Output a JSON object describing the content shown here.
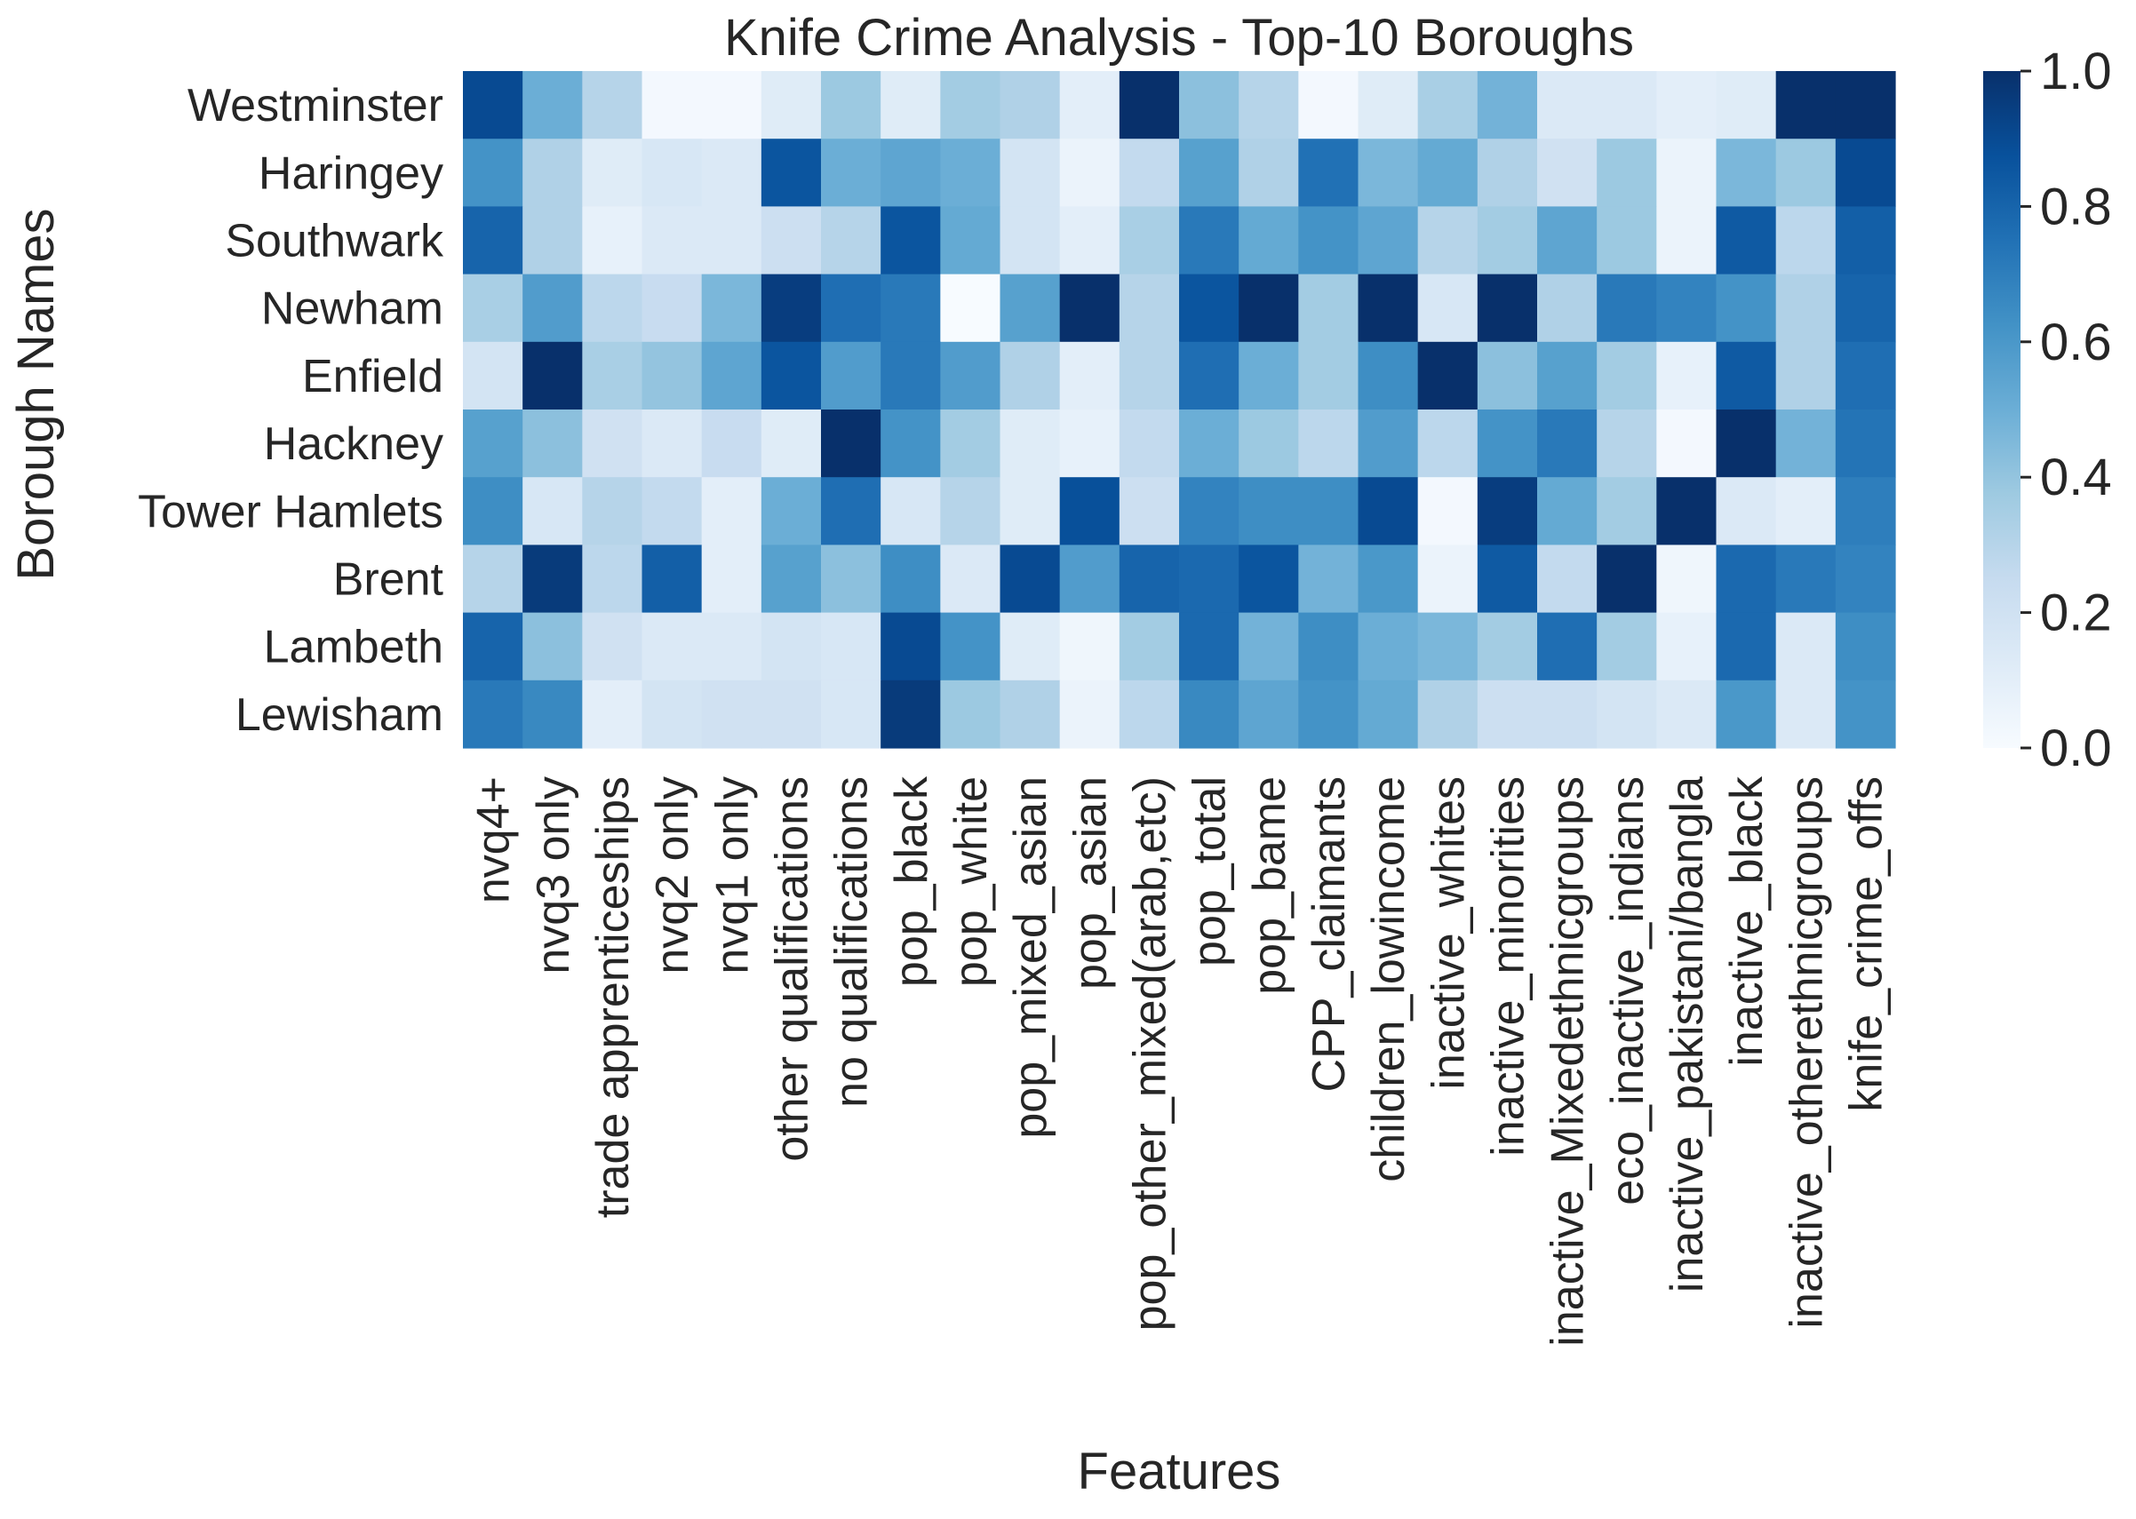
{
  "chart_data": {
    "type": "heatmap",
    "title": "Knife Crime Analysis - Top-10 Boroughs",
    "xlabel": "Features",
    "ylabel": "Borough Names",
    "columns": [
      "nvq4+",
      "nvq3 only",
      "trade apprenticeships",
      "nvq2 only",
      "nvq1 only",
      "other qualifications",
      "no qualifications",
      "pop_black",
      "pop_white",
      "pop_mixed_asian",
      "pop_asian",
      "pop_other_mixed(arab,etc)",
      "pop_total",
      "pop_bame",
      "CPP_claimants",
      "children_lowincome",
      "inactive_whites",
      "inactive_minorities",
      "inactive_Mixedethnicgroups",
      "eco_inactive_indians",
      "inactive_pakistani/bangla",
      "inactive_black",
      "inactive_otherethnicgroups",
      "knife_crime_offs"
    ],
    "rows": [
      "Westminster",
      "Haringey",
      "Southwark",
      "Newham",
      "Enfield",
      "Hackney",
      "Tower Hamlets",
      "Brent",
      "Lambeth",
      "Lewisham"
    ],
    "values": [
      [
        0.9,
        0.5,
        0.3,
        0.02,
        0.02,
        0.12,
        0.38,
        0.12,
        0.36,
        0.32,
        0.1,
        1.0,
        0.42,
        0.3,
        0.02,
        0.12,
        0.34,
        0.48,
        0.14,
        0.14,
        0.1,
        0.12,
        1.0,
        1.0
      ],
      [
        0.62,
        0.32,
        0.12,
        0.16,
        0.14,
        0.86,
        0.5,
        0.54,
        0.5,
        0.18,
        0.06,
        0.26,
        0.56,
        0.32,
        0.75,
        0.46,
        0.52,
        0.32,
        0.2,
        0.38,
        0.06,
        0.46,
        0.38,
        0.9
      ],
      [
        0.8,
        0.32,
        0.08,
        0.14,
        0.14,
        0.22,
        0.3,
        0.86,
        0.52,
        0.18,
        0.1,
        0.34,
        0.72,
        0.52,
        0.62,
        0.54,
        0.3,
        0.36,
        0.54,
        0.38,
        0.06,
        0.84,
        0.28,
        0.82
      ],
      [
        0.34,
        0.58,
        0.28,
        0.24,
        0.46,
        0.95,
        0.76,
        0.72,
        0.0,
        0.56,
        1.0,
        0.3,
        0.86,
        1.0,
        0.36,
        1.0,
        0.16,
        1.0,
        0.32,
        0.72,
        0.68,
        0.62,
        0.32,
        0.8
      ],
      [
        0.18,
        1.0,
        0.34,
        0.4,
        0.54,
        0.86,
        0.58,
        0.72,
        0.58,
        0.32,
        0.1,
        0.3,
        0.76,
        0.5,
        0.36,
        0.64,
        1.0,
        0.42,
        0.56,
        0.36,
        0.08,
        0.84,
        0.32,
        0.76
      ],
      [
        0.56,
        0.42,
        0.2,
        0.14,
        0.24,
        0.12,
        1.0,
        0.62,
        0.36,
        0.12,
        0.08,
        0.26,
        0.5,
        0.38,
        0.28,
        0.58,
        0.28,
        0.62,
        0.72,
        0.3,
        0.02,
        1.0,
        0.48,
        0.74
      ],
      [
        0.64,
        0.16,
        0.3,
        0.26,
        0.1,
        0.5,
        0.76,
        0.16,
        0.3,
        0.12,
        0.88,
        0.22,
        0.68,
        0.64,
        0.64,
        0.9,
        0.02,
        0.95,
        0.52,
        0.36,
        1.0,
        0.14,
        0.1,
        0.7
      ],
      [
        0.3,
        0.96,
        0.28,
        0.82,
        0.1,
        0.56,
        0.42,
        0.64,
        0.14,
        0.9,
        0.58,
        0.8,
        0.78,
        0.86,
        0.48,
        0.6,
        0.06,
        0.84,
        0.26,
        1.0,
        0.04,
        0.78,
        0.72,
        0.68
      ],
      [
        0.8,
        0.42,
        0.2,
        0.14,
        0.14,
        0.18,
        0.16,
        0.9,
        0.62,
        0.12,
        0.04,
        0.36,
        0.78,
        0.48,
        0.64,
        0.5,
        0.46,
        0.36,
        0.76,
        0.36,
        0.08,
        0.78,
        0.14,
        0.64
      ],
      [
        0.72,
        0.66,
        0.1,
        0.18,
        0.2,
        0.2,
        0.16,
        0.96,
        0.38,
        0.32,
        0.06,
        0.28,
        0.66,
        0.54,
        0.62,
        0.52,
        0.32,
        0.22,
        0.22,
        0.18,
        0.14,
        0.6,
        0.14,
        0.62
      ]
    ],
    "colormap": "Blues",
    "vmin": 0.0,
    "vmax": 1.0,
    "colorbar_ticks": [
      "0.0",
      "0.2",
      "0.4",
      "0.6",
      "0.8",
      "1.0"
    ],
    "colorbar_tick_values": [
      0.0,
      0.2,
      0.4,
      0.6,
      0.8,
      1.0
    ]
  },
  "colors": {
    "text": "#262626",
    "colormap_stops": [
      "#f7fbff",
      "#deebf7",
      "#c6dbef",
      "#9ecae1",
      "#6baed6",
      "#4292c6",
      "#2171b5",
      "#08519c",
      "#08306b"
    ]
  }
}
